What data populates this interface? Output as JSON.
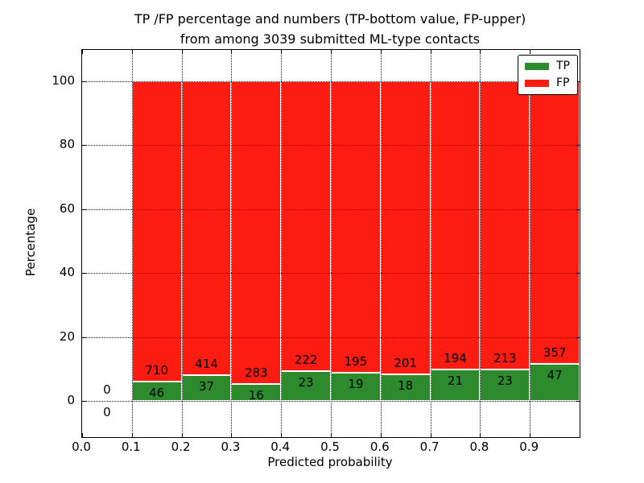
{
  "title": {
    "line1": "TP /FP percentage and numbers (TP-bottom value, FP-upper)",
    "line2": "from among 3039 submitted ML-type contacts"
  },
  "axes": {
    "xlabel": "Predicted probability",
    "ylabel": "Percentage",
    "x_tick_labels": [
      "0.0",
      "0.1",
      "0.2",
      "0.3",
      "0.4",
      "0.5",
      "0.6",
      "0.7",
      "0.8",
      "0.9"
    ],
    "y_tick_labels": [
      "0",
      "20",
      "40",
      "60",
      "80",
      "100"
    ]
  },
  "legend": {
    "position": "upper right",
    "items": [
      {
        "label": "TP",
        "color": "#2d8b2d"
      },
      {
        "label": "FP",
        "color": "#fc1c12"
      }
    ]
  },
  "colors": {
    "tp_green": "#2d8b2d",
    "fp_red": "#fc1c12",
    "text": "#000000",
    "background": "#ffffff",
    "grid": "#1a1a1a"
  },
  "chart_data": {
    "type": "bar",
    "stacked": true,
    "normalized": "each non-empty bar stacks to 100%",
    "title": "TP /FP percentage and numbers (TP-bottom value, FP-upper) from among 3039 submitted ML-type contacts",
    "xlabel": "Predicted probability",
    "ylabel": "Percentage",
    "xlim": [
      0.0,
      1.0
    ],
    "ylim": [
      -11.3,
      109.8
    ],
    "grid": true,
    "legend_position": "upper right",
    "total_contacts": 3039,
    "series": [
      {
        "name": "TP",
        "color": "#2d8b2d",
        "stack_order": "bottom"
      },
      {
        "name": "FP",
        "color": "#fc1c12",
        "stack_order": "top"
      }
    ],
    "bins": [
      {
        "x_range": [
          0.0,
          0.1
        ],
        "tp_count": 0,
        "fp_count": 0,
        "tp_percent": null,
        "fp_percent": null
      },
      {
        "x_range": [
          0.1,
          0.2
        ],
        "tp_count": 46,
        "fp_count": 710,
        "tp_percent": 6.08,
        "fp_percent": 93.92
      },
      {
        "x_range": [
          0.2,
          0.3
        ],
        "tp_count": 37,
        "fp_count": 414,
        "tp_percent": 8.2,
        "fp_percent": 91.8
      },
      {
        "x_range": [
          0.3,
          0.4
        ],
        "tp_count": 16,
        "fp_count": 283,
        "tp_percent": 5.35,
        "fp_percent": 94.65
      },
      {
        "x_range": [
          0.4,
          0.5
        ],
        "tp_count": 23,
        "fp_count": 222,
        "tp_percent": 9.39,
        "fp_percent": 90.61
      },
      {
        "x_range": [
          0.5,
          0.6
        ],
        "tp_count": 19,
        "fp_count": 195,
        "tp_percent": 8.88,
        "fp_percent": 91.12
      },
      {
        "x_range": [
          0.6,
          0.7
        ],
        "tp_count": 18,
        "fp_count": 201,
        "tp_percent": 8.22,
        "fp_percent": 91.78
      },
      {
        "x_range": [
          0.7,
          0.8
        ],
        "tp_count": 21,
        "fp_count": 194,
        "tp_percent": 9.77,
        "fp_percent": 90.23
      },
      {
        "x_range": [
          0.8,
          0.9
        ],
        "tp_count": 23,
        "fp_count": 213,
        "tp_percent": 9.75,
        "fp_percent": 90.25
      },
      {
        "x_range": [
          0.9,
          1.0
        ],
        "tp_count": 47,
        "fp_count": 357,
        "tp_percent": 11.63,
        "fp_percent": 88.37
      }
    ]
  }
}
